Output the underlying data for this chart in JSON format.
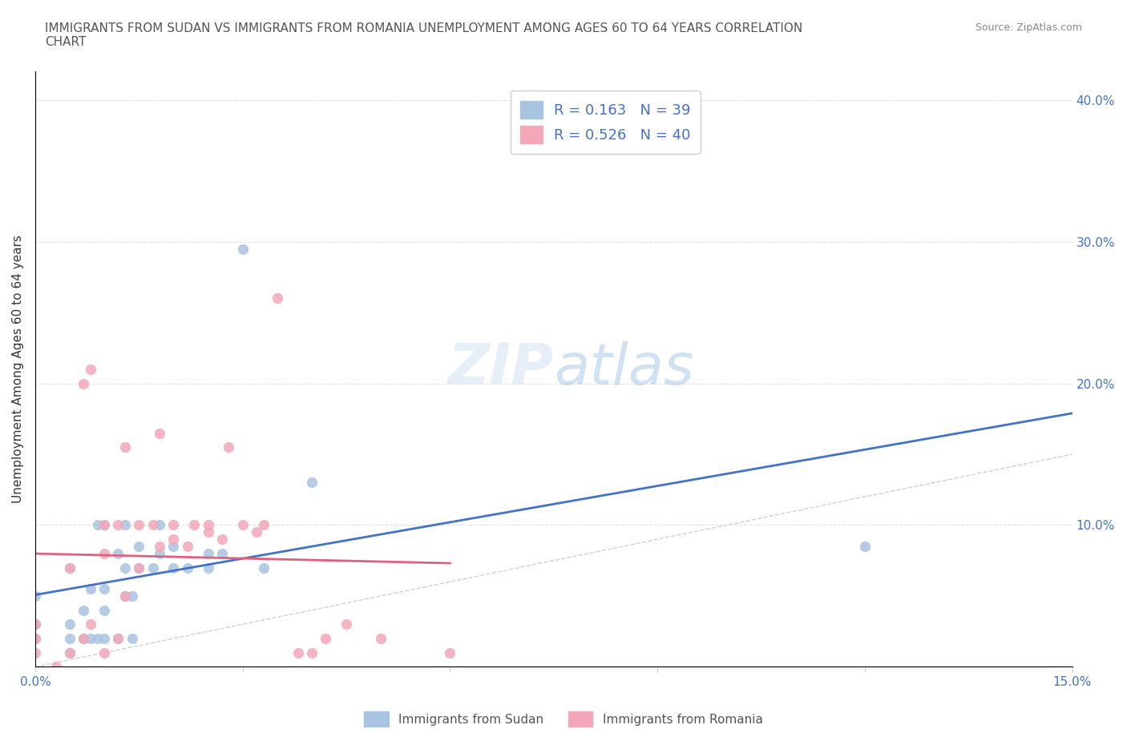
{
  "title": "IMMIGRANTS FROM SUDAN VS IMMIGRANTS FROM ROMANIA UNEMPLOYMENT AMONG AGES 60 TO 64 YEARS CORRELATION\nCHART",
  "source": "Source: ZipAtlas.com",
  "xlabel": "",
  "ylabel": "Unemployment Among Ages 60 to 64 years",
  "xlim": [
    0.0,
    0.15
  ],
  "ylim": [
    0.0,
    0.42
  ],
  "xticks": [
    0.0,
    0.03,
    0.06,
    0.09,
    0.12,
    0.15
  ],
  "xtick_labels": [
    "0.0%",
    "",
    "",
    "",
    "",
    "15.0%"
  ],
  "ytick_right": [
    0.1,
    0.2,
    0.3,
    0.4
  ],
  "ytick_right_labels": [
    "10.0%",
    "20.0%",
    "30.0%",
    "40.0%"
  ],
  "sudan_color": "#a8c4e0",
  "romania_color": "#f4a7b9",
  "sudan_R": 0.163,
  "sudan_N": 39,
  "romania_R": 0.526,
  "romania_N": 40,
  "sudan_line_color": "#4472c4",
  "romania_line_color": "#e06080",
  "diagonal_color": "#d0d0d0",
  "watermark": "ZIPatlas",
  "sudan_points_x": [
    0.0,
    0.0,
    0.0,
    0.005,
    0.005,
    0.005,
    0.005,
    0.007,
    0.007,
    0.008,
    0.008,
    0.009,
    0.009,
    0.01,
    0.01,
    0.01,
    0.01,
    0.012,
    0.012,
    0.013,
    0.013,
    0.013,
    0.014,
    0.014,
    0.015,
    0.015,
    0.017,
    0.018,
    0.018,
    0.02,
    0.02,
    0.022,
    0.025,
    0.025,
    0.027,
    0.03,
    0.033,
    0.04,
    0.12
  ],
  "sudan_points_y": [
    0.02,
    0.03,
    0.05,
    0.01,
    0.02,
    0.03,
    0.07,
    0.02,
    0.04,
    0.02,
    0.055,
    0.02,
    0.1,
    0.02,
    0.04,
    0.055,
    0.1,
    0.02,
    0.08,
    0.05,
    0.07,
    0.1,
    0.02,
    0.05,
    0.07,
    0.085,
    0.07,
    0.08,
    0.1,
    0.07,
    0.085,
    0.07,
    0.07,
    0.08,
    0.08,
    0.295,
    0.07,
    0.13,
    0.085
  ],
  "romania_points_x": [
    0.0,
    0.0,
    0.0,
    0.003,
    0.005,
    0.005,
    0.007,
    0.007,
    0.008,
    0.008,
    0.01,
    0.01,
    0.01,
    0.012,
    0.012,
    0.013,
    0.013,
    0.015,
    0.015,
    0.017,
    0.018,
    0.018,
    0.02,
    0.02,
    0.022,
    0.023,
    0.025,
    0.025,
    0.027,
    0.028,
    0.03,
    0.032,
    0.033,
    0.035,
    0.038,
    0.04,
    0.042,
    0.045,
    0.05,
    0.06
  ],
  "romania_points_y": [
    0.01,
    0.02,
    0.03,
    0.0,
    0.01,
    0.07,
    0.02,
    0.2,
    0.03,
    0.21,
    0.01,
    0.08,
    0.1,
    0.02,
    0.1,
    0.05,
    0.155,
    0.07,
    0.1,
    0.1,
    0.085,
    0.165,
    0.09,
    0.1,
    0.085,
    0.1,
    0.095,
    0.1,
    0.09,
    0.155,
    0.1,
    0.095,
    0.1,
    0.26,
    0.01,
    0.01,
    0.02,
    0.03,
    0.02,
    0.01
  ]
}
